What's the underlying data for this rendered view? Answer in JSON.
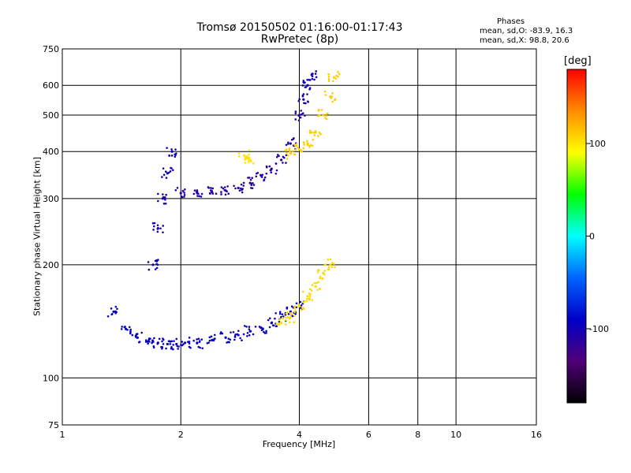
{
  "header": {
    "title": "Tromsø 20150502 01:16:00-01:17:43",
    "subtitle": "RwPretec (8p)",
    "phase_label": "Phases",
    "stat_o": "mean, sd,O: -83.9, 16.3",
    "stat_x": "mean, sd,X:  98.8, 20.6"
  },
  "colorbar": {
    "label": "[deg]",
    "ticks": [
      "100",
      "0",
      "-100"
    ],
    "colors": [
      "#ff0000",
      "#ff8c00",
      "#ffff00",
      "#00ff00",
      "#00ffff",
      "#0064ff",
      "#0000c8",
      "#500078",
      "#000000"
    ]
  },
  "chart_data": {
    "type": "scatter",
    "title": "Tromsø 20150502 01:16:00-01:17:43",
    "subtitle": "RwPretec (8p)",
    "xlabel": "Frequency [MHz]",
    "ylabel": "Stationary phase Virtual Height [km]",
    "x_scale": "log",
    "y_scale": "log",
    "xlim": [
      1,
      16
    ],
    "ylim": [
      75,
      750
    ],
    "x_ticks": [
      1,
      2,
      4,
      6,
      8,
      10,
      16
    ],
    "y_ticks": [
      75,
      100,
      200,
      300,
      400,
      500,
      600,
      750
    ],
    "grid": true,
    "color_scale": {
      "label": "[deg]",
      "range": [
        -180,
        180
      ]
    },
    "series": [
      {
        "x": [
          1.35,
          1.45,
          1.55,
          1.65,
          1.75,
          1.85,
          1.95,
          2.05,
          2.2,
          2.4,
          2.6,
          2.8,
          3.0,
          3.2,
          3.4,
          3.6,
          3.8,
          4.0
        ],
        "y": [
          150,
          135,
          128,
          125,
          124,
          123,
          123,
          124,
          124,
          126,
          128,
          130,
          133,
          136,
          140,
          145,
          150,
          155
        ],
        "phase": -95
      },
      {
        "x": [
          1.7,
          1.75,
          1.8,
          1.85,
          1.9
        ],
        "y": [
          200,
          250,
          300,
          350,
          400
        ],
        "phase": -100
      },
      {
        "x": [
          2.0,
          2.2,
          2.4,
          2.6,
          2.8,
          3.0,
          3.2,
          3.4,
          3.6,
          3.8,
          4.0
        ],
        "y": [
          310,
          310,
          312,
          315,
          320,
          330,
          345,
          360,
          380,
          420,
          500
        ],
        "phase": -110
      },
      {
        "x": [
          4.1,
          4.2,
          4.3
        ],
        "y": [
          550,
          600,
          640
        ],
        "phase": -100
      },
      {
        "x": [
          2.9,
          3.0
        ],
        "y": [
          390,
          380
        ],
        "phase": 100
      },
      {
        "x": [
          3.8,
          4.0,
          4.2,
          4.4,
          4.6,
          4.8,
          4.9
        ],
        "y": [
          395,
          405,
          420,
          450,
          500,
          560,
          630
        ],
        "phase": 110
      },
      {
        "x": [
          3.6,
          3.8,
          4.0,
          4.2,
          4.4,
          4.6,
          4.8
        ],
        "y": [
          140,
          145,
          155,
          165,
          175,
          190,
          200
        ],
        "phase": 105
      }
    ]
  }
}
